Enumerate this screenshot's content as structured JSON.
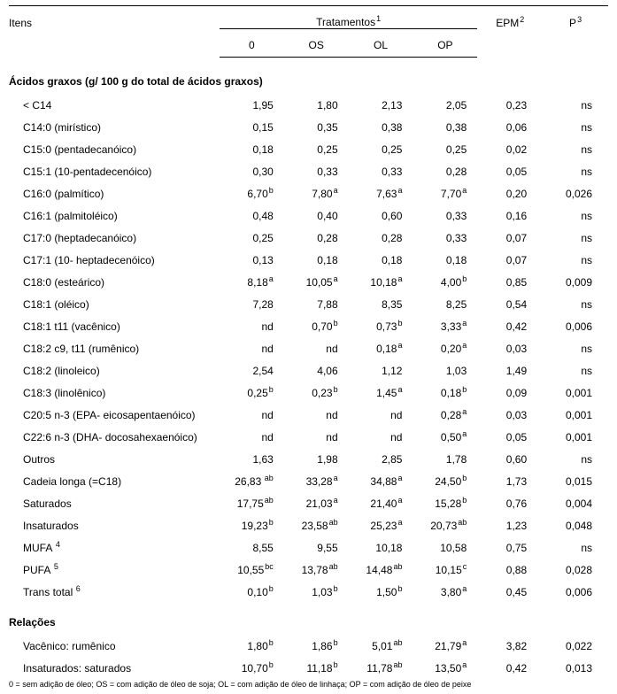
{
  "colors": {
    "text": "#000000",
    "background": "#ffffff",
    "rule": "#000000"
  },
  "typography": {
    "base_fontsize_pt": 9,
    "sup_fontsize_pt": 7,
    "font_family": "Arial"
  },
  "header": {
    "itens": "Itens",
    "tratamentos": "Tratamentos",
    "tratamentos_sup": "1",
    "epm": "EPM",
    "epm_sup": "2",
    "p": "P",
    "p_sup": "3",
    "cols": {
      "c0": "0",
      "c1": "OS",
      "c2": "OL",
      "c3": "OP"
    }
  },
  "sections": {
    "acidos": "Ácidos graxos (g/ 100 g do total de ácidos graxos)",
    "relacoes": "Relações"
  },
  "rows": [
    {
      "item": "< C14",
      "v": [
        {
          "t": "1,95"
        },
        {
          "t": "1,80"
        },
        {
          "t": "2,13"
        },
        {
          "t": "2,05"
        }
      ],
      "epm": "0,23",
      "p": "ns"
    },
    {
      "item": "C14:0 (mirístico)",
      "v": [
        {
          "t": "0,15"
        },
        {
          "t": "0,35"
        },
        {
          "t": "0,38"
        },
        {
          "t": "0,38"
        }
      ],
      "epm": "0,06",
      "p": "ns"
    },
    {
      "item": "C15:0 (pentadecanóico)",
      "v": [
        {
          "t": "0,18"
        },
        {
          "t": "0,25"
        },
        {
          "t": "0,25"
        },
        {
          "t": "0,25"
        }
      ],
      "epm": "0,02",
      "p": "ns"
    },
    {
      "item": "C15:1 (10-pentadecenóico)",
      "v": [
        {
          "t": "0,30"
        },
        {
          "t": "0,33"
        },
        {
          "t": "0,33"
        },
        {
          "t": "0,28"
        }
      ],
      "epm": "0,05",
      "p": "ns"
    },
    {
      "item": "C16:0 (palmítico)",
      "v": [
        {
          "t": "6,70",
          "s": "b"
        },
        {
          "t": "7,80",
          "s": "a"
        },
        {
          "t": "7,63",
          "s": "a"
        },
        {
          "t": "7,70",
          "s": "a"
        }
      ],
      "epm": "0,20",
      "p": "0,026"
    },
    {
      "item": "C16:1 (palmitoléico)",
      "v": [
        {
          "t": "0,48"
        },
        {
          "t": "0,40"
        },
        {
          "t": "0,60"
        },
        {
          "t": "0,33"
        }
      ],
      "epm": "0,16",
      "p": "ns"
    },
    {
      "item": "C17:0 (heptadecanóico)",
      "v": [
        {
          "t": "0,25"
        },
        {
          "t": "0,28"
        },
        {
          "t": "0,28"
        },
        {
          "t": "0,33"
        }
      ],
      "epm": "0,07",
      "p": "ns"
    },
    {
      "item": "C17:1 (10- heptadecenóico)",
      "v": [
        {
          "t": "0,13"
        },
        {
          "t": "0,18"
        },
        {
          "t": "0,18"
        },
        {
          "t": "0,18"
        }
      ],
      "epm": "0,07",
      "p": "ns"
    },
    {
      "item": "C18:0 (esteárico)",
      "v": [
        {
          "t": "8,18",
          "s": "a"
        },
        {
          "t": "10,05",
          "s": "a"
        },
        {
          "t": "10,18",
          "s": "a"
        },
        {
          "t": "4,00",
          "s": "b"
        }
      ],
      "epm": "0,85",
      "p": "0,009"
    },
    {
      "item": "C18:1 (oléico)",
      "v": [
        {
          "t": "7,28"
        },
        {
          "t": "7,88"
        },
        {
          "t": "8,35"
        },
        {
          "t": "8,25"
        }
      ],
      "epm": "0,54",
      "p": "ns"
    },
    {
      "item": "C18:1 t11 (vacênico)",
      "v": [
        {
          "t": "nd"
        },
        {
          "t": "0,70",
          "s": "b"
        },
        {
          "t": "0,73",
          "s": "b"
        },
        {
          "t": "3,33",
          "s": "a"
        }
      ],
      "epm": "0,42",
      "p": "0,006"
    },
    {
      "item": "C18:2 c9, t11 (rumênico)",
      "v": [
        {
          "t": "nd"
        },
        {
          "t": "nd"
        },
        {
          "t": "0,18",
          "s": "a"
        },
        {
          "t": "0,20",
          "s": "a"
        }
      ],
      "epm": "0,03",
      "p": "ns"
    },
    {
      "item": "C18:2 (linoleico)",
      "v": [
        {
          "t": "2,54"
        },
        {
          "t": "4,06"
        },
        {
          "t": "1,12"
        },
        {
          "t": "1,03"
        }
      ],
      "epm": "1,49",
      "p": "ns"
    },
    {
      "item": "C18:3 (linolênico)",
      "v": [
        {
          "t": "0,25",
          "s": "b"
        },
        {
          "t": "0,23",
          "s": "b"
        },
        {
          "t": "1,45",
          "s": "a"
        },
        {
          "t": "0,18",
          "s": "b"
        }
      ],
      "epm": "0,09",
      "p": "0,001"
    },
    {
      "item": "C20:5 n-3 (EPA- eicosapentaenóico)",
      "v": [
        {
          "t": "nd"
        },
        {
          "t": "nd"
        },
        {
          "t": "nd"
        },
        {
          "t": "0,28",
          "s": "a"
        }
      ],
      "epm": "0,03",
      "p": "0,001"
    },
    {
      "item": "C22:6 n-3 (DHA- docosahexaenóico)",
      "v": [
        {
          "t": "nd"
        },
        {
          "t": "nd"
        },
        {
          "t": "nd"
        },
        {
          "t": "0,50",
          "s": "a"
        }
      ],
      "epm": "0,05",
      "p": "0,001"
    },
    {
      "item": "Outros",
      "v": [
        {
          "t": "1,63"
        },
        {
          "t": "1,98"
        },
        {
          "t": "2,85"
        },
        {
          "t": "1,78"
        }
      ],
      "epm": "0,60",
      "p": "ns"
    },
    {
      "item": "Cadeia longa (=C18)",
      "v": [
        {
          "t": "26,83",
          "s": " ab"
        },
        {
          "t": "33,28",
          "s": "a"
        },
        {
          "t": "34,88",
          "s": "a"
        },
        {
          "t": "24,50",
          "s": "b"
        }
      ],
      "epm": "1,73",
      "p": "0,015"
    },
    {
      "item": "Saturados",
      "v": [
        {
          "t": "17,75",
          "s": "ab"
        },
        {
          "t": "21,03",
          "s": "a"
        },
        {
          "t": "21,40",
          "s": "a"
        },
        {
          "t": "15,28",
          "s": "b"
        }
      ],
      "epm": "0,76",
      "p": "0,004"
    },
    {
      "item": "Insaturados",
      "v": [
        {
          "t": "19,23",
          "s": "b"
        },
        {
          "t": "23,58",
          "s": "ab"
        },
        {
          "t": "25,23",
          "s": "a"
        },
        {
          "t": "20,73",
          "s": "ab"
        }
      ],
      "epm": "1,23",
      "p": "0,048"
    },
    {
      "item": "MUFA",
      "item_sup": "4",
      "v": [
        {
          "t": "8,55"
        },
        {
          "t": "9,55"
        },
        {
          "t": "10,18"
        },
        {
          "t": "10,58"
        }
      ],
      "epm": "0,75",
      "p": "ns"
    },
    {
      "item": "PUFA",
      "item_sup": "5",
      "v": [
        {
          "t": "10,55",
          "s": "bc"
        },
        {
          "t": "13,78",
          "s": "ab"
        },
        {
          "t": "14,48",
          "s": "ab"
        },
        {
          "t": "10,15",
          "s": "c"
        }
      ],
      "epm": "0,88",
      "p": "0,028"
    },
    {
      "item": "Trans total",
      "item_sup": "6",
      "v": [
        {
          "t": "0,10",
          "s": "b"
        },
        {
          "t": "1,03",
          "s": "b"
        },
        {
          "t": "1,50",
          "s": "b"
        },
        {
          "t": "3,80",
          "s": "a"
        }
      ],
      "epm": "0,45",
      "p": "0,006"
    }
  ],
  "rel_rows": [
    {
      "item": "Vacênico: rumênico",
      "v": [
        {
          "t": "1,80",
          "s": "b"
        },
        {
          "t": "1,86",
          "s": "b"
        },
        {
          "t": "5,01",
          "s": "ab"
        },
        {
          "t": "21,79",
          "s": "a"
        }
      ],
      "epm": "3,82",
      "p": "0,022"
    },
    {
      "item": "Insaturados: saturados",
      "v": [
        {
          "t": "10,70",
          "s": "b"
        },
        {
          "t": "11,18",
          "s": "b"
        },
        {
          "t": "11,78",
          "s": "ab"
        },
        {
          "t": "13,50",
          "s": "a"
        }
      ],
      "epm": "0,42",
      "p": "0,013"
    }
  ],
  "footer_fragment": "0 = sem adição de óleo; OS = com adição de óleo de soja; OL = com adição de óleo de linhaça; OP = com adição de óleo de peixe"
}
